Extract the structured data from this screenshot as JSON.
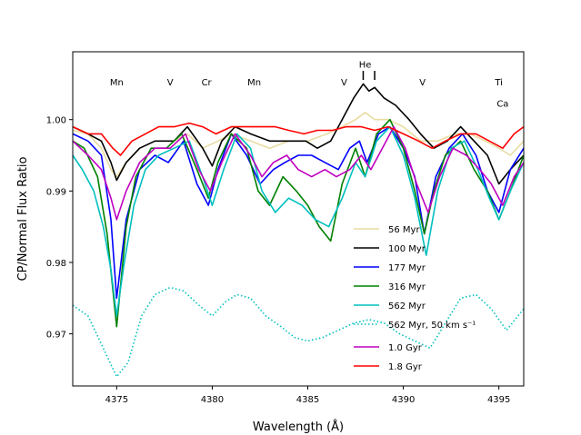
{
  "chart_data": {
    "type": "line",
    "xlabel": "Wavelength (Å)",
    "ylabel": "CP/Normal Flux Ratio",
    "xlim": [
      4372.7,
      4396.3
    ],
    "ylim": [
      0.9627,
      1.0095
    ],
    "xticks": [
      4375,
      4380,
      4385,
      4390,
      4395
    ],
    "yticks": [
      0.97,
      0.98,
      0.99,
      1.0
    ],
    "xtick_labels": [
      "4375",
      "4380",
      "4385",
      "4390",
      "4395"
    ],
    "ytick_labels": [
      "0.97",
      "0.98",
      "0.99",
      "1.00"
    ],
    "line_annotations": [
      {
        "label": "Mn",
        "x": 4375.0,
        "y": 1.0053
      },
      {
        "label": "V",
        "x": 4377.8,
        "y": 1.0053
      },
      {
        "label": "Cr",
        "x": 4379.7,
        "y": 1.0053
      },
      {
        "label": "Mn",
        "x": 4382.2,
        "y": 1.0053
      },
      {
        "label": "V",
        "x": 4386.9,
        "y": 1.0053
      },
      {
        "label": "He",
        "x": 4388.0,
        "y": 1.0078
      },
      {
        "label": "V",
        "x": 4391.0,
        "y": 1.0053
      },
      {
        "label": "Ti",
        "x": 4395.0,
        "y": 1.0053
      },
      {
        "label": "Ca",
        "x": 4395.2,
        "y": 1.0023
      }
    ],
    "he_markers": [
      4387.9,
      4388.5
    ],
    "legend_position": "lower-right",
    "series": [
      {
        "name": "56 Myr",
        "color": "#e8dca0",
        "style": "solid",
        "x": [
          4372.7,
          4373.5,
          4374.2,
          4374.7,
          4375.0,
          4375.5,
          4376.2,
          4377.0,
          4378.0,
          4378.7,
          4379.5,
          4380.3,
          4381.0,
          4382.0,
          4383.0,
          4384.0,
          4385.0,
          4386.0,
          4386.8,
          4387.5,
          4388.0,
          4388.5,
          4389.2,
          4390.0,
          4390.9,
          4391.8,
          4392.7,
          4393.5,
          4394.3,
          4395.0,
          4395.6,
          4396.3
        ],
        "y": [
          0.9985,
          0.998,
          0.996,
          0.993,
          0.992,
          0.994,
          0.996,
          0.997,
          0.997,
          0.998,
          0.996,
          0.997,
          0.998,
          0.997,
          0.996,
          0.997,
          0.997,
          0.998,
          0.999,
          1.0,
          1.001,
          1.0,
          1.0,
          0.999,
          0.997,
          0.997,
          0.998,
          0.998,
          0.997,
          0.996,
          0.995,
          0.997
        ]
      },
      {
        "name": "100 Myr",
        "color": "#000000",
        "style": "solid",
        "x": [
          4372.7,
          4373.5,
          4374.2,
          4374.7,
          4375.0,
          4375.5,
          4376.2,
          4377.0,
          4378.0,
          4378.7,
          4379.5,
          4380.0,
          4380.5,
          4381.2,
          4382.0,
          4383.0,
          4384.0,
          4384.9,
          4385.5,
          4386.2,
          4386.8,
          4387.4,
          4387.9,
          4388.2,
          4388.5,
          4389.0,
          4389.6,
          4390.3,
          4390.9,
          4391.6,
          4392.3,
          4393.0,
          4393.7,
          4394.4,
          4395.0,
          4395.6,
          4396.3
        ],
        "y": [
          0.999,
          0.998,
          0.997,
          0.994,
          0.9915,
          0.994,
          0.996,
          0.997,
          0.997,
          0.999,
          0.996,
          0.9935,
          0.997,
          0.999,
          0.998,
          0.997,
          0.997,
          0.997,
          0.996,
          0.997,
          1.0,
          1.003,
          1.005,
          1.004,
          1.0045,
          1.003,
          1.002,
          1.0,
          0.998,
          0.996,
          0.997,
          0.999,
          0.997,
          0.995,
          0.991,
          0.993,
          0.995
        ]
      },
      {
        "name": "177 Myr",
        "color": "#0000ff",
        "style": "solid",
        "x": [
          4372.7,
          4373.5,
          4374.2,
          4374.7,
          4375.0,
          4375.5,
          4376.2,
          4377.0,
          4377.7,
          4378.5,
          4379.2,
          4379.8,
          4380.3,
          4381.0,
          4381.8,
          4382.5,
          4383.2,
          4383.8,
          4384.5,
          4385.2,
          4385.9,
          4386.6,
          4387.2,
          4387.7,
          4388.1,
          4388.7,
          4389.3,
          4390.0,
          4390.6,
          4391.1,
          4391.7,
          4392.4,
          4393.1,
          4393.8,
          4394.4,
          4395.0,
          4395.6,
          4396.3
        ],
        "y": [
          0.998,
          0.997,
          0.995,
          0.986,
          0.975,
          0.986,
          0.993,
          0.995,
          0.994,
          0.997,
          0.991,
          0.988,
          0.993,
          0.998,
          0.995,
          0.991,
          0.993,
          0.994,
          0.995,
          0.995,
          0.994,
          0.993,
          0.996,
          0.997,
          0.994,
          0.998,
          0.999,
          0.996,
          0.992,
          0.984,
          0.992,
          0.996,
          0.998,
          0.995,
          0.99,
          0.987,
          0.993,
          0.996
        ]
      },
      {
        "name": "316 Myr",
        "color": "#008000",
        "style": "solid",
        "x": [
          4372.7,
          4373.3,
          4374.0,
          4374.5,
          4375.0,
          4375.5,
          4376.0,
          4376.8,
          4377.6,
          4378.4,
          4379.2,
          4379.8,
          4380.3,
          4381.0,
          4381.8,
          4382.4,
          4383.0,
          4383.7,
          4384.4,
          4385.0,
          4385.6,
          4386.2,
          4386.8,
          4387.5,
          4388.0,
          4388.6,
          4389.3,
          4390.0,
          4390.6,
          4391.1,
          4391.6,
          4392.2,
          4393.0,
          4393.7,
          4394.4,
          4395.0,
          4395.6,
          4396.3
        ],
        "y": [
          0.997,
          0.996,
          0.992,
          0.984,
          0.971,
          0.985,
          0.992,
          0.996,
          0.996,
          0.998,
          0.993,
          0.989,
          0.994,
          0.998,
          0.996,
          0.99,
          0.988,
          0.992,
          0.99,
          0.988,
          0.985,
          0.983,
          0.991,
          0.996,
          0.992,
          0.998,
          1.0,
          0.996,
          0.99,
          0.984,
          0.99,
          0.995,
          0.997,
          0.993,
          0.99,
          0.986,
          0.99,
          0.995
        ]
      },
      {
        "name": "562 Myr",
        "color": "#00bfbf",
        "style": "solid",
        "x": [
          4372.7,
          4373.2,
          4373.8,
          4374.3,
          4374.7,
          4375.0,
          4375.4,
          4375.9,
          4376.5,
          4377.2,
          4378.0,
          4378.8,
          4379.5,
          4380.0,
          4380.6,
          4381.3,
          4382.0,
          4382.6,
          4383.3,
          4384.0,
          4384.7,
          4385.4,
          4386.1,
          4386.8,
          4387.5,
          4388.0,
          4388.6,
          4389.3,
          4390.0,
          4390.6,
          4391.2,
          4391.8,
          4392.5,
          4393.2,
          4393.9,
          4394.5,
          4395.0,
          4395.6,
          4396.3
        ],
        "y": [
          0.995,
          0.993,
          0.99,
          0.985,
          0.979,
          0.9725,
          0.98,
          0.988,
          0.993,
          0.995,
          0.996,
          0.997,
          0.992,
          0.988,
          0.993,
          0.998,
          0.996,
          0.99,
          0.987,
          0.989,
          0.988,
          0.986,
          0.985,
          0.989,
          0.994,
          0.992,
          0.997,
          0.999,
          0.995,
          0.989,
          0.981,
          0.99,
          0.996,
          0.997,
          0.993,
          0.989,
          0.986,
          0.99,
          0.994
        ]
      },
      {
        "name": "562 Myr, 50 km s⁻¹",
        "color": "#00bfbf",
        "style": "dotted",
        "x": [
          4372.7,
          4373.5,
          4374.3,
          4375.0,
          4375.6,
          4376.3,
          4377.0,
          4377.8,
          4378.5,
          4379.3,
          4380.0,
          4380.7,
          4381.3,
          4382.0,
          4382.8,
          4383.6,
          4384.3,
          4385.0,
          4385.8,
          4386.6,
          4387.4,
          4388.2,
          4389.0,
          4389.8,
          4390.6,
          4391.4,
          4392.2,
          4393.0,
          4393.8,
          4394.6,
          4395.4,
          4396.3
        ],
        "y": [
          0.974,
          0.9725,
          0.968,
          0.964,
          0.966,
          0.9725,
          0.9755,
          0.9765,
          0.976,
          0.974,
          0.9725,
          0.9745,
          0.9755,
          0.975,
          0.9725,
          0.971,
          0.9695,
          0.969,
          0.9695,
          0.9705,
          0.9715,
          0.972,
          0.9715,
          0.97,
          0.969,
          0.968,
          0.9715,
          0.975,
          0.9755,
          0.9735,
          0.9705,
          0.9735
        ]
      },
      {
        "name": "1.0 Gyr",
        "color": "#bf00bf",
        "style": "solid",
        "x": [
          4372.7,
          4373.5,
          4374.2,
          4374.7,
          4375.0,
          4375.5,
          4376.2,
          4377.0,
          4377.8,
          4378.6,
          4379.3,
          4379.9,
          4380.5,
          4381.2,
          4382.0,
          4382.6,
          4383.2,
          4383.9,
          4384.5,
          4385.2,
          4385.9,
          4386.5,
          4387.2,
          4387.8,
          4388.3,
          4388.9,
          4389.5,
          4390.1,
          4390.7,
          4391.3,
          4391.9,
          4392.6,
          4393.3,
          4394.0,
          4394.6,
          4395.2,
          4395.8,
          4396.3
        ],
        "y": [
          0.997,
          0.995,
          0.993,
          0.989,
          0.986,
          0.99,
          0.994,
          0.996,
          0.996,
          0.998,
          0.993,
          0.99,
          0.994,
          0.998,
          0.995,
          0.992,
          0.994,
          0.995,
          0.993,
          0.992,
          0.993,
          0.992,
          0.993,
          0.995,
          0.993,
          0.996,
          0.999,
          0.996,
          0.991,
          0.987,
          0.992,
          0.996,
          0.995,
          0.993,
          0.991,
          0.988,
          0.992,
          0.994
        ]
      },
      {
        "name": "1.8 Gyr",
        "color": "#ff0000",
        "style": "solid",
        "x": [
          4372.7,
          4373.5,
          4374.2,
          4374.8,
          4375.2,
          4375.8,
          4376.5,
          4377.2,
          4378.0,
          4378.8,
          4379.5,
          4380.2,
          4381.0,
          4381.8,
          4382.5,
          4383.3,
          4384.0,
          4384.8,
          4385.5,
          4386.3,
          4387.0,
          4387.8,
          4388.5,
          4389.2,
          4390.0,
          4390.8,
          4391.5,
          4392.2,
          4393.0,
          4393.8,
          4394.5,
          4395.2,
          4395.8,
          4396.3
        ],
        "y": [
          0.999,
          0.998,
          0.998,
          0.996,
          0.995,
          0.997,
          0.998,
          0.999,
          0.999,
          0.9995,
          0.999,
          0.998,
          0.999,
          0.999,
          0.999,
          0.999,
          0.9985,
          0.998,
          0.9985,
          0.9985,
          0.999,
          0.999,
          0.9985,
          0.999,
          0.998,
          0.997,
          0.996,
          0.997,
          0.998,
          0.998,
          0.997,
          0.996,
          0.998,
          0.999
        ]
      }
    ]
  }
}
